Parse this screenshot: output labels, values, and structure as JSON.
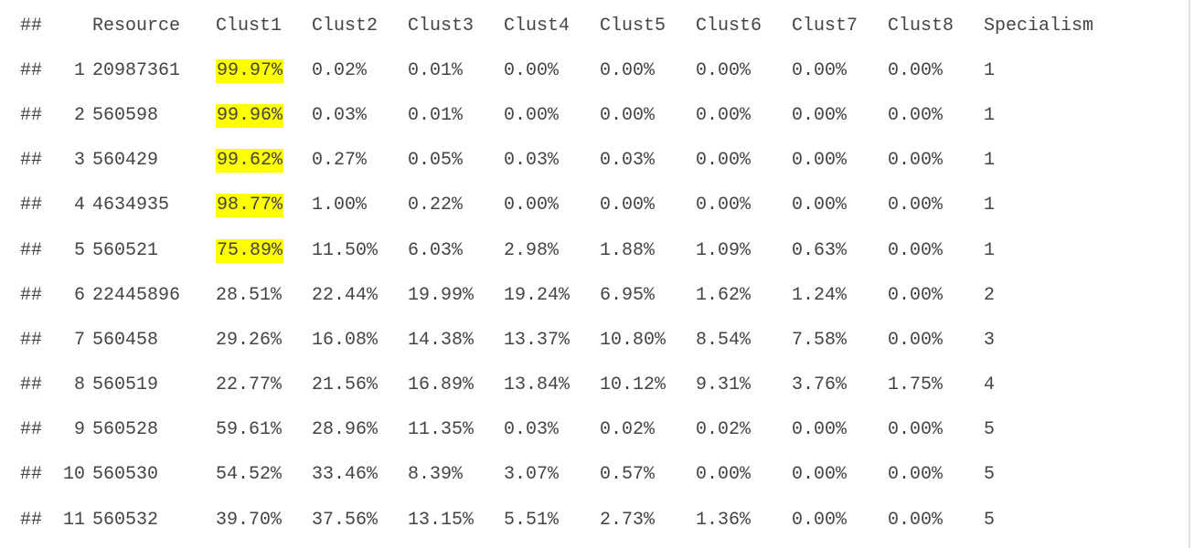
{
  "prompt": "##",
  "headers": [
    "Resource",
    "Clust1",
    "Clust2",
    "Clust3",
    "Clust4",
    "Clust5",
    "Clust6",
    "Clust7",
    "Clust8",
    "Specialism"
  ],
  "rows": [
    {
      "index": "1",
      "cells": [
        "20987361",
        "99.97%",
        "0.02%",
        "0.01%",
        "0.00%",
        "0.00%",
        "0.00%",
        "0.00%",
        "0.00%",
        "1"
      ],
      "highlight": [
        1
      ]
    },
    {
      "index": "2",
      "cells": [
        "560598",
        "99.96%",
        "0.03%",
        "0.01%",
        "0.00%",
        "0.00%",
        "0.00%",
        "0.00%",
        "0.00%",
        "1"
      ],
      "highlight": [
        1
      ]
    },
    {
      "index": "3",
      "cells": [
        "560429",
        "99.62%",
        "0.27%",
        "0.05%",
        "0.03%",
        "0.03%",
        "0.00%",
        "0.00%",
        "0.00%",
        "1"
      ],
      "highlight": [
        1
      ]
    },
    {
      "index": "4",
      "cells": [
        "4634935",
        "98.77%",
        "1.00%",
        "0.22%",
        "0.00%",
        "0.00%",
        "0.00%",
        "0.00%",
        "0.00%",
        "1"
      ],
      "highlight": [
        1
      ]
    },
    {
      "index": "5",
      "cells": [
        "560521",
        "75.89%",
        "11.50%",
        "6.03%",
        "2.98%",
        "1.88%",
        "1.09%",
        "0.63%",
        "0.00%",
        "1"
      ],
      "highlight": [
        1
      ]
    },
    {
      "index": "6",
      "cells": [
        "22445896",
        "28.51%",
        "22.44%",
        "19.99%",
        "19.24%",
        "6.95%",
        "1.62%",
        "1.24%",
        "0.00%",
        "2"
      ],
      "highlight": []
    },
    {
      "index": "7",
      "cells": [
        "560458",
        "29.26%",
        "16.08%",
        "14.38%",
        "13.37%",
        "10.80%",
        "8.54%",
        "7.58%",
        "0.00%",
        "3"
      ],
      "highlight": []
    },
    {
      "index": "8",
      "cells": [
        "560519",
        "22.77%",
        "21.56%",
        "16.89%",
        "13.84%",
        "10.12%",
        "9.31%",
        "3.76%",
        "1.75%",
        "4"
      ],
      "highlight": []
    },
    {
      "index": "9",
      "cells": [
        "560528",
        "59.61%",
        "28.96%",
        "11.35%",
        "0.03%",
        "0.02%",
        "0.02%",
        "0.00%",
        "0.00%",
        "5"
      ],
      "highlight": []
    },
    {
      "index": "10",
      "cells": [
        "560530",
        "54.52%",
        "33.46%",
        "8.39%",
        "3.07%",
        "0.57%",
        "0.00%",
        "0.00%",
        "0.00%",
        "5"
      ],
      "highlight": []
    },
    {
      "index": "11",
      "cells": [
        "560532",
        "39.70%",
        "37.56%",
        "13.15%",
        "5.51%",
        "2.73%",
        "1.36%",
        "0.00%",
        "0.00%",
        "5"
      ],
      "highlight": []
    }
  ],
  "colors": {
    "text": "#444444",
    "highlight": "#ffff00",
    "background": "#ffffff"
  }
}
